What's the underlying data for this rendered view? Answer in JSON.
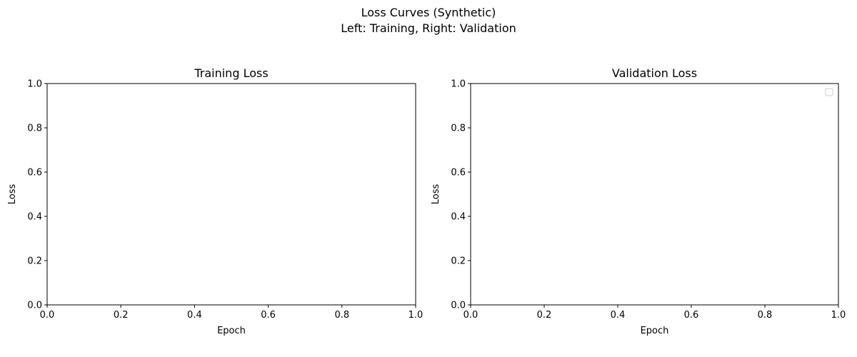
{
  "figure": {
    "title_line1": "Loss Curves (Synthetic)",
    "title_line2": "Left: Training, Right: Validation"
  },
  "chart_data": [
    {
      "type": "line",
      "title": "Training Loss",
      "xlabel": "Epoch",
      "ylabel": "Loss",
      "xlim": [
        0,
        1
      ],
      "ylim": [
        0,
        1
      ],
      "xticks": [
        "0.0",
        "0.2",
        "0.4",
        "0.6",
        "0.8",
        "1.0"
      ],
      "yticks": [
        "0.0",
        "0.2",
        "0.4",
        "0.6",
        "0.8",
        "1.0"
      ],
      "series": [],
      "grid": false,
      "legend": null
    },
    {
      "type": "line",
      "title": "Validation Loss",
      "xlabel": "Epoch",
      "ylabel": "Loss",
      "xlim": [
        0,
        1
      ],
      "ylim": [
        0,
        1
      ],
      "xticks": [
        "0.0",
        "0.2",
        "0.4",
        "0.6",
        "0.8",
        "1.0"
      ],
      "yticks": [
        "0.0",
        "0.2",
        "0.4",
        "0.6",
        "0.8",
        "1.0"
      ],
      "series": [],
      "grid": false,
      "legend": "top-right"
    }
  ]
}
